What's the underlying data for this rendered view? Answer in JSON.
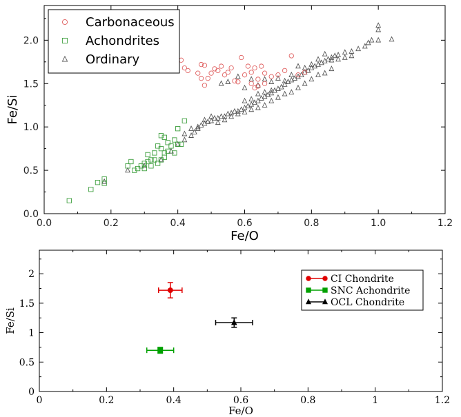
{
  "chart_data": [
    {
      "type": "scatter",
      "xlabel": "Fe/O",
      "ylabel": "Fe/Si",
      "xlim": [
        0,
        1.2
      ],
      "ylim": [
        0,
        2.4
      ],
      "xticks": [
        "0.0",
        "0.2",
        "0.4",
        "0.6",
        "0.8",
        "1.0",
        "1.2"
      ],
      "yticks": [
        "0.0",
        "0.5",
        "1.0",
        "1.5",
        "2.0"
      ],
      "legend_position": "top-left",
      "grid": false,
      "series": [
        {
          "name": "Carbonaceous",
          "marker": "circle",
          "color": "#e06060",
          "points": [
            [
              0.41,
              1.77
            ],
            [
              0.42,
              1.68
            ],
            [
              0.43,
              1.65
            ],
            [
              0.46,
              1.62
            ],
            [
              0.47,
              1.56
            ],
            [
              0.48,
              1.48
            ],
            [
              0.47,
              1.72
            ],
            [
              0.48,
              1.71
            ],
            [
              0.49,
              1.56
            ],
            [
              0.5,
              1.62
            ],
            [
              0.51,
              1.67
            ],
            [
              0.52,
              1.65
            ],
            [
              0.53,
              1.7
            ],
            [
              0.54,
              1.6
            ],
            [
              0.55,
              1.63
            ],
            [
              0.56,
              1.68
            ],
            [
              0.57,
              1.53
            ],
            [
              0.58,
              1.52
            ],
            [
              0.59,
              1.8
            ],
            [
              0.6,
              1.6
            ],
            [
              0.61,
              1.7
            ],
            [
              0.62,
              1.63
            ],
            [
              0.62,
              1.5
            ],
            [
              0.63,
              1.68
            ],
            [
              0.63,
              1.45
            ],
            [
              0.64,
              1.55
            ],
            [
              0.65,
              1.7
            ],
            [
              0.66,
              1.62
            ],
            [
              0.68,
              1.58
            ],
            [
              0.7,
              1.6
            ],
            [
              0.72,
              1.65
            ],
            [
              0.74,
              1.82
            ],
            [
              0.76,
              1.6
            ],
            [
              0.78,
              1.63
            ],
            [
              0.66,
              1.5
            ],
            [
              0.64,
              1.47
            ]
          ]
        },
        {
          "name": "Achondrites",
          "marker": "square",
          "color": "#40a040",
          "points": [
            [
              0.075,
              0.15
            ],
            [
              0.14,
              0.28
            ],
            [
              0.16,
              0.36
            ],
            [
              0.18,
              0.4
            ],
            [
              0.18,
              0.35
            ],
            [
              0.25,
              0.55
            ],
            [
              0.26,
              0.6
            ],
            [
              0.27,
              0.5
            ],
            [
              0.28,
              0.52
            ],
            [
              0.29,
              0.55
            ],
            [
              0.3,
              0.52
            ],
            [
              0.3,
              0.58
            ],
            [
              0.31,
              0.6
            ],
            [
              0.31,
              0.68
            ],
            [
              0.32,
              0.62
            ],
            [
              0.32,
              0.55
            ],
            [
              0.33,
              0.62
            ],
            [
              0.33,
              0.7
            ],
            [
              0.34,
              0.58
            ],
            [
              0.34,
              0.78
            ],
            [
              0.35,
              0.62
            ],
            [
              0.35,
              0.75
            ],
            [
              0.35,
              0.9
            ],
            [
              0.36,
              0.65
            ],
            [
              0.36,
              0.7
            ],
            [
              0.36,
              0.88
            ],
            [
              0.37,
              0.72
            ],
            [
              0.37,
              0.82
            ],
            [
              0.38,
              0.78
            ],
            [
              0.39,
              0.85
            ],
            [
              0.39,
              0.7
            ],
            [
              0.4,
              0.98
            ],
            [
              0.4,
              0.8
            ],
            [
              0.41,
              0.8
            ],
            [
              0.42,
              1.07
            ]
          ]
        },
        {
          "name": "Ordinary",
          "marker": "triangle",
          "color": "#555555",
          "points": [
            [
              0.18,
              0.37
            ],
            [
              0.25,
              0.5
            ],
            [
              0.3,
              0.55
            ],
            [
              0.35,
              0.62
            ],
            [
              0.38,
              0.72
            ],
            [
              0.4,
              0.8
            ],
            [
              0.42,
              0.85
            ],
            [
              0.44,
              0.9
            ],
            [
              0.45,
              0.94
            ],
            [
              0.46,
              0.98
            ],
            [
              0.47,
              1.02
            ],
            [
              0.48,
              1.04
            ],
            [
              0.49,
              1.06
            ],
            [
              0.5,
              1.07
            ],
            [
              0.51,
              1.1
            ],
            [
              0.52,
              1.1
            ],
            [
              0.53,
              1.12
            ],
            [
              0.54,
              1.12
            ],
            [
              0.55,
              1.15
            ],
            [
              0.56,
              1.16
            ],
            [
              0.57,
              1.18
            ],
            [
              0.58,
              1.18
            ],
            [
              0.59,
              1.2
            ],
            [
              0.6,
              1.22
            ],
            [
              0.61,
              1.24
            ],
            [
              0.62,
              1.26
            ],
            [
              0.63,
              1.28
            ],
            [
              0.64,
              1.3
            ],
            [
              0.65,
              1.33
            ],
            [
              0.66,
              1.35
            ],
            [
              0.67,
              1.37
            ],
            [
              0.68,
              1.39
            ],
            [
              0.69,
              1.42
            ],
            [
              0.7,
              1.44
            ],
            [
              0.71,
              1.46
            ],
            [
              0.72,
              1.49
            ],
            [
              0.73,
              1.52
            ],
            [
              0.74,
              1.54
            ],
            [
              0.75,
              1.56
            ],
            [
              0.76,
              1.58
            ],
            [
              0.77,
              1.6
            ],
            [
              0.78,
              1.63
            ],
            [
              0.79,
              1.65
            ],
            [
              0.8,
              1.68
            ],
            [
              0.81,
              1.7
            ],
            [
              0.82,
              1.72
            ],
            [
              0.83,
              1.74
            ],
            [
              0.84,
              1.76
            ],
            [
              0.85,
              1.78
            ],
            [
              0.86,
              1.8
            ],
            [
              0.87,
              1.82
            ],
            [
              0.88,
              1.83
            ],
            [
              0.9,
              1.86
            ],
            [
              0.92,
              1.87
            ],
            [
              0.94,
              1.9
            ],
            [
              0.96,
              1.93
            ],
            [
              0.97,
              1.97
            ],
            [
              0.98,
              2.0
            ],
            [
              1.0,
              2.0
            ],
            [
              1.0,
              2.17
            ],
            [
              1.0,
              2.12
            ],
            [
              1.04,
              2.01
            ],
            [
              0.52,
              1.05
            ],
            [
              0.54,
              1.08
            ],
            [
              0.56,
              1.12
            ],
            [
              0.58,
              1.15
            ],
            [
              0.6,
              1.17
            ],
            [
              0.62,
              1.2
            ],
            [
              0.64,
              1.22
            ],
            [
              0.66,
              1.25
            ],
            [
              0.68,
              1.3
            ],
            [
              0.7,
              1.34
            ],
            [
              0.72,
              1.38
            ],
            [
              0.74,
              1.4
            ],
            [
              0.76,
              1.45
            ],
            [
              0.78,
              1.5
            ],
            [
              0.8,
              1.55
            ],
            [
              0.82,
              1.6
            ],
            [
              0.84,
              1.62
            ],
            [
              0.86,
              1.67
            ],
            [
              0.6,
              1.45
            ],
            [
              0.62,
              1.55
            ],
            [
              0.64,
              1.48
            ],
            [
              0.66,
              1.55
            ],
            [
              0.68,
              1.52
            ],
            [
              0.7,
              1.56
            ],
            [
              0.72,
              1.53
            ],
            [
              0.74,
              1.6
            ],
            [
              0.76,
              1.7
            ],
            [
              0.78,
              1.68
            ],
            [
              0.8,
              1.72
            ],
            [
              0.82,
              1.78
            ],
            [
              0.84,
              1.84
            ],
            [
              0.86,
              1.77
            ],
            [
              0.88,
              1.78
            ],
            [
              0.9,
              1.8
            ],
            [
              0.92,
              1.82
            ],
            [
              0.53,
              1.5
            ],
            [
              0.55,
              1.52
            ],
            [
              0.58,
              1.58
            ],
            [
              0.48,
              1.08
            ],
            [
              0.5,
              1.12
            ],
            [
              0.46,
              1.0
            ],
            [
              0.44,
              0.98
            ],
            [
              0.42,
              0.92
            ],
            [
              0.6,
              1.3
            ],
            [
              0.62,
              1.32
            ],
            [
              0.64,
              1.38
            ],
            [
              0.66,
              1.4
            ],
            [
              0.68,
              1.42
            ]
          ]
        }
      ]
    },
    {
      "type": "scatter",
      "xlabel": "Fe/O",
      "ylabel": "Fe/Si",
      "xlim": [
        0,
        1.2
      ],
      "ylim": [
        0,
        2.4
      ],
      "xticks": [
        "0",
        "0.2",
        "0.4",
        "0.6",
        "0.8",
        "1",
        "1.2"
      ],
      "yticks": [
        "0",
        "0.5",
        "1",
        "1.5",
        "2"
      ],
      "legend_position": "top-right",
      "grid": false,
      "series": [
        {
          "name": "CI Chondrite",
          "marker": "circle",
          "color": "#e00000",
          "x": 0.39,
          "y": 1.72,
          "xerr": 0.035,
          "yerr": 0.13
        },
        {
          "name": "SNC Achondrite",
          "marker": "square",
          "color": "#00a000",
          "x": 0.36,
          "y": 0.7,
          "xerr": 0.04,
          "yerr": 0.05
        },
        {
          "name": "OCL Chondrite",
          "marker": "triangle",
          "color": "#000000",
          "x": 0.58,
          "y": 1.17,
          "xerr": 0.055,
          "yerr": 0.08
        }
      ]
    }
  ]
}
